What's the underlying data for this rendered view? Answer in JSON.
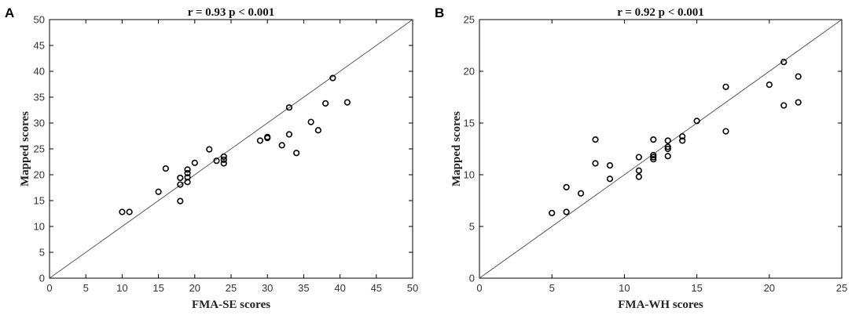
{
  "chart_data": [
    {
      "type": "scatter",
      "panel_label": "A",
      "title": "r = 0.93  p < 0.001",
      "xlabel": "FMA-SE scores",
      "ylabel": "Mapped scores",
      "xlim": [
        0,
        50
      ],
      "ylim": [
        0,
        50
      ],
      "xticks": [
        0,
        5,
        10,
        15,
        20,
        25,
        30,
        35,
        40,
        45,
        50
      ],
      "yticks": [
        0,
        5,
        10,
        15,
        20,
        25,
        30,
        35,
        40,
        45,
        50
      ],
      "reference_line": [
        [
          0,
          0
        ],
        [
          50,
          50
        ]
      ],
      "grid": false,
      "points": [
        {
          "x": 10,
          "y": 12.8
        },
        {
          "x": 11,
          "y": 12.8
        },
        {
          "x": 15,
          "y": 16.7
        },
        {
          "x": 16,
          "y": 21.2
        },
        {
          "x": 18,
          "y": 19.4
        },
        {
          "x": 18,
          "y": 18.1
        },
        {
          "x": 18,
          "y": 14.9
        },
        {
          "x": 19,
          "y": 21.0
        },
        {
          "x": 19,
          "y": 20.3
        },
        {
          "x": 19,
          "y": 19.5
        },
        {
          "x": 19,
          "y": 18.6
        },
        {
          "x": 20,
          "y": 22.3
        },
        {
          "x": 22,
          "y": 24.9
        },
        {
          "x": 23,
          "y": 22.7
        },
        {
          "x": 24,
          "y": 23.5
        },
        {
          "x": 24,
          "y": 22.9
        },
        {
          "x": 24,
          "y": 22.2
        },
        {
          "x": 29,
          "y": 26.6
        },
        {
          "x": 30,
          "y": 27.3
        },
        {
          "x": 30,
          "y": 27.1
        },
        {
          "x": 32,
          "y": 25.7
        },
        {
          "x": 33,
          "y": 33.0
        },
        {
          "x": 33,
          "y": 27.8
        },
        {
          "x": 34,
          "y": 24.2
        },
        {
          "x": 36,
          "y": 30.2
        },
        {
          "x": 37,
          "y": 28.6
        },
        {
          "x": 38,
          "y": 33.8
        },
        {
          "x": 39,
          "y": 38.7
        },
        {
          "x": 41,
          "y": 34.0
        }
      ]
    },
    {
      "type": "scatter",
      "panel_label": "B",
      "title": "r = 0.92  p < 0.001",
      "xlabel": "FMA-WH scores",
      "ylabel": "Mapped scores",
      "xlim": [
        0,
        25
      ],
      "ylim": [
        0,
        25
      ],
      "xticks": [
        0,
        5,
        10,
        15,
        20,
        25
      ],
      "yticks": [
        0,
        5,
        10,
        15,
        20,
        25
      ],
      "reference_line": [
        [
          0,
          0
        ],
        [
          25,
          25
        ]
      ],
      "grid": false,
      "points": [
        {
          "x": 5,
          "y": 6.3
        },
        {
          "x": 6,
          "y": 8.8
        },
        {
          "x": 6,
          "y": 6.4
        },
        {
          "x": 7,
          "y": 8.2
        },
        {
          "x": 8,
          "y": 13.4
        },
        {
          "x": 8,
          "y": 11.1
        },
        {
          "x": 9,
          "y": 10.9
        },
        {
          "x": 9,
          "y": 9.6
        },
        {
          "x": 11,
          "y": 11.7
        },
        {
          "x": 11,
          "y": 10.4
        },
        {
          "x": 11,
          "y": 9.8
        },
        {
          "x": 12,
          "y": 13.4
        },
        {
          "x": 12,
          "y": 11.9
        },
        {
          "x": 12,
          "y": 11.7
        },
        {
          "x": 12,
          "y": 11.5
        },
        {
          "x": 13,
          "y": 13.3
        },
        {
          "x": 13,
          "y": 12.7
        },
        {
          "x": 13,
          "y": 12.5
        },
        {
          "x": 13,
          "y": 11.8
        },
        {
          "x": 14,
          "y": 13.7
        },
        {
          "x": 14,
          "y": 13.3
        },
        {
          "x": 15,
          "y": 15.2
        },
        {
          "x": 17,
          "y": 18.5
        },
        {
          "x": 17,
          "y": 14.2
        },
        {
          "x": 20,
          "y": 18.7
        },
        {
          "x": 21,
          "y": 20.9
        },
        {
          "x": 21,
          "y": 16.7
        },
        {
          "x": 22,
          "y": 19.5
        },
        {
          "x": 22,
          "y": 17.0
        }
      ]
    }
  ]
}
